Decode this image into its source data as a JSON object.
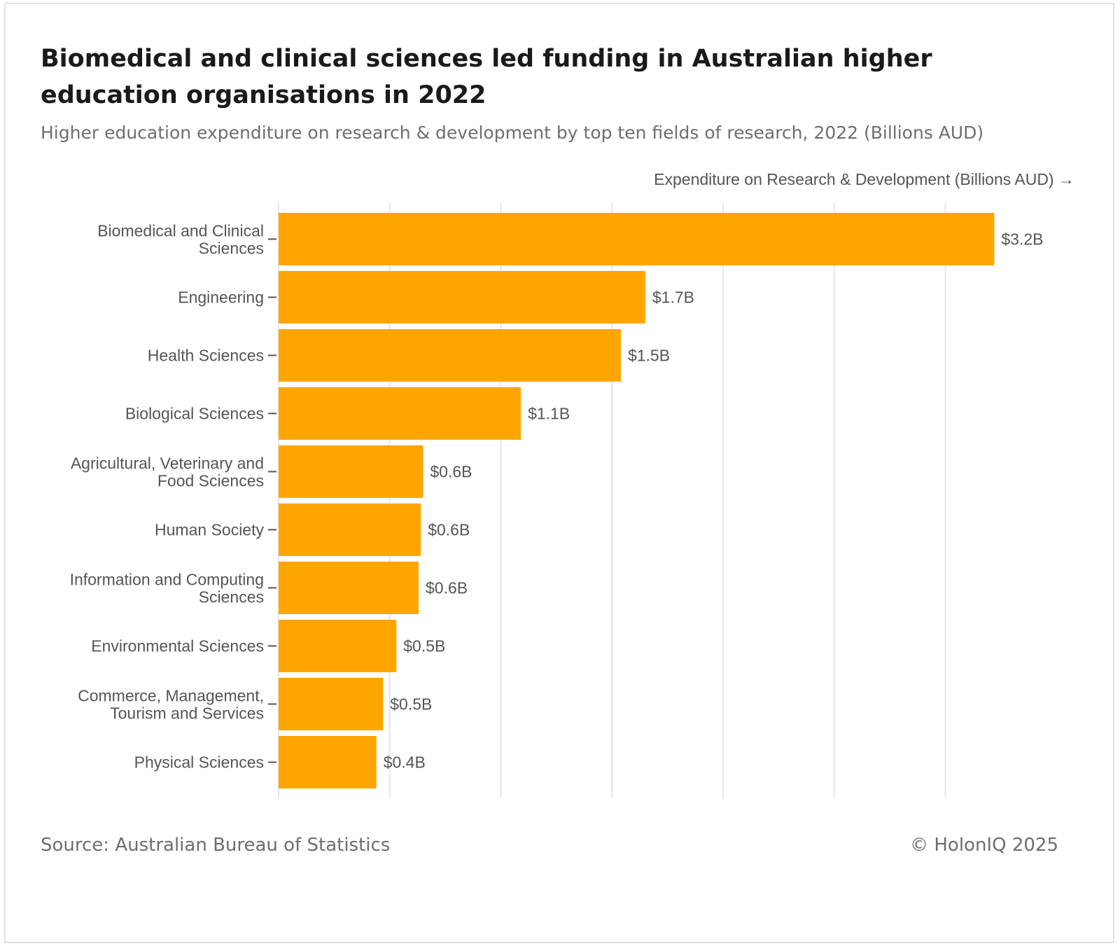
{
  "header": {
    "title": "Biomedical and clinical sciences led funding in Australian higher education organisations in 2022",
    "subtitle": "Higher education expenditure on research & development by top ten fields of research, 2022 (Billions AUD)"
  },
  "footer": {
    "source": "Source: Australian Bureau of Statistics",
    "copyright": "© HolonIQ 2025"
  },
  "colors": {
    "bar": "#FFA500",
    "grid": "#e6e6e6",
    "text": "#555555"
  },
  "chart_data": {
    "type": "bar",
    "orientation": "horizontal",
    "title": "Biomedical and clinical sciences led funding in Australian higher education organisations in 2022",
    "subtitle": "Higher education expenditure on research & development by top ten fields of research, 2022 (Billions AUD)",
    "xlabel": "Expenditure on Research & Development (Billions AUD) →",
    "ylabel": "",
    "xlim": [
      0,
      3.6
    ],
    "grid": true,
    "categories": [
      [
        "Biomedical and Clinical",
        "Sciences"
      ],
      [
        "Engineering"
      ],
      [
        "Health Sciences"
      ],
      [
        "Biological Sciences"
      ],
      [
        "Agricultural, Veterinary and",
        "Food Sciences"
      ],
      [
        "Human Society"
      ],
      [
        "Information and Computing",
        "Sciences"
      ],
      [
        "Environmental Sciences"
      ],
      [
        "Commerce, Management,",
        "Tourism and Services"
      ],
      [
        "Physical Sciences"
      ]
    ],
    "values": [
      3.22,
      1.65,
      1.54,
      1.09,
      0.65,
      0.64,
      0.63,
      0.53,
      0.47,
      0.44
    ],
    "value_labels": [
      "$3.2B",
      "$1.7B",
      "$1.5B",
      "$1.1B",
      "$0.6B",
      "$0.6B",
      "$0.6B",
      "$0.5B",
      "$0.5B",
      "$0.4B"
    ]
  }
}
